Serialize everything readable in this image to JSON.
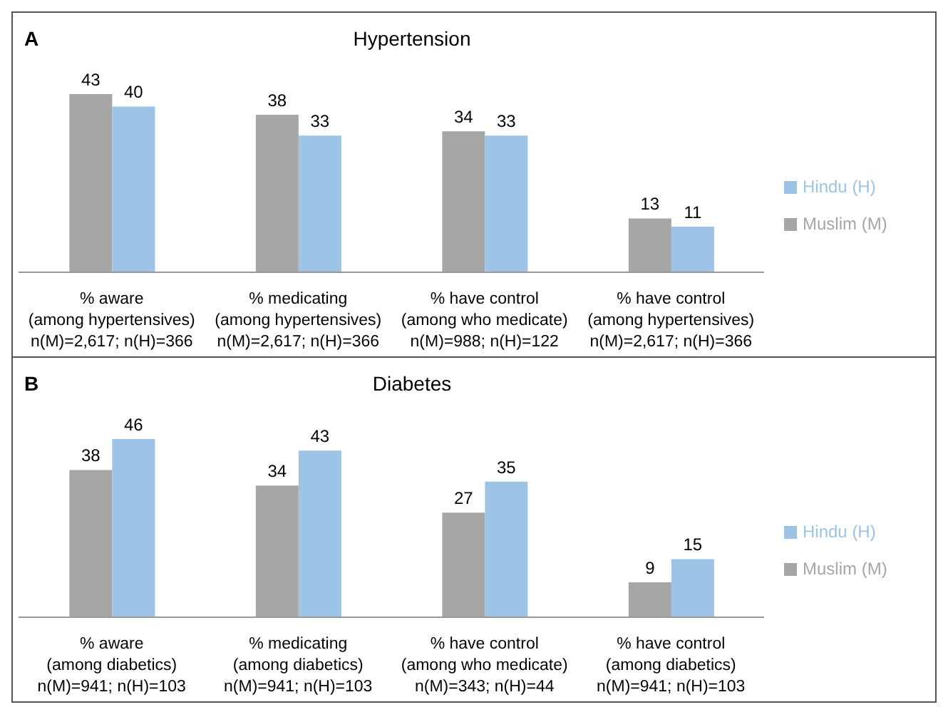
{
  "chart_data": [
    {
      "type": "bar",
      "title": "Hypertension",
      "annotations": [
        "A"
      ],
      "categories": [
        "% aware\n(among hypertensives)\nn(M)=2,617; n(H)=366",
        "% medicating\n(among hypertensives)\nn(M)=2,617; n(H)=366",
        "% have control\n(among who medicate)\nn(M)=988; n(H)=122",
        "% have control\n(among hypertensives)\nn(M)=2,617; n(H)=366"
      ],
      "series": [
        {
          "name": "Muslim (M)",
          "color": "#a6a6a6",
          "values": [
            43,
            38,
            34,
            13
          ]
        },
        {
          "name": "Hindu (H)",
          "color": "#9dc3e6",
          "values": [
            40,
            33,
            33,
            11
          ]
        }
      ],
      "data_labels": true,
      "legend": "right",
      "grid": false
    },
    {
      "type": "bar",
      "title": "Diabetes",
      "annotations": [
        "B"
      ],
      "categories": [
        "% aware\n(among diabetics)\nn(M)=941; n(H)=103",
        "% medicating\n(among diabetics)\nn(M)=941; n(H)=103",
        "% have control\n(among who medicate)\nn(M)=343; n(H)=44",
        "% have control\n(among diabetics)\nn(M)=941; n(H)=103"
      ],
      "series": [
        {
          "name": "Muslim (M)",
          "color": "#a6a6a6",
          "values": [
            38,
            34,
            27,
            9
          ]
        },
        {
          "name": "Hindu (H)",
          "color": "#9dc3e6",
          "values": [
            46,
            43,
            35,
            15
          ]
        }
      ],
      "data_labels": true,
      "legend": "right",
      "grid": false
    }
  ]
}
